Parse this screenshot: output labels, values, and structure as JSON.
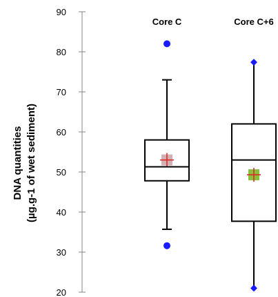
{
  "chart_data": {
    "type": "box",
    "ylabel_lines": [
      "DNA quantities",
      "(µg.g-1 of wet sediment)"
    ],
    "ylim": [
      20,
      90
    ],
    "yticks": [
      20,
      30,
      40,
      50,
      60,
      70,
      80,
      90
    ],
    "grid": false,
    "legend": "none",
    "categories": [
      "Core C",
      "Core C+6"
    ],
    "boxes": [
      {
        "label": "Core C",
        "whisker_low": 35.7,
        "q1": 47.8,
        "median": 51.3,
        "q3": 58.0,
        "whisker_high": 73.0,
        "mean": 53.0,
        "mean_marker_color": "#d3b0b3",
        "outliers": [
          82.0,
          31.6
        ],
        "outlier_color": "#1a1aff"
      },
      {
        "label": "Core C+6",
        "whisker_low": 21.0,
        "q1": 37.7,
        "median": 53.0,
        "q3": 62.0,
        "whisker_high": 77.4,
        "mean": 49.3,
        "mean_marker_color": "#8dbf3f",
        "outliers": [],
        "outlier_color": "#1a1aff",
        "whisker_end_markers": [
          77.4,
          21.0
        ]
      }
    ],
    "mean_cross_color": "#e02020",
    "box_stroke_color": "#000000"
  }
}
